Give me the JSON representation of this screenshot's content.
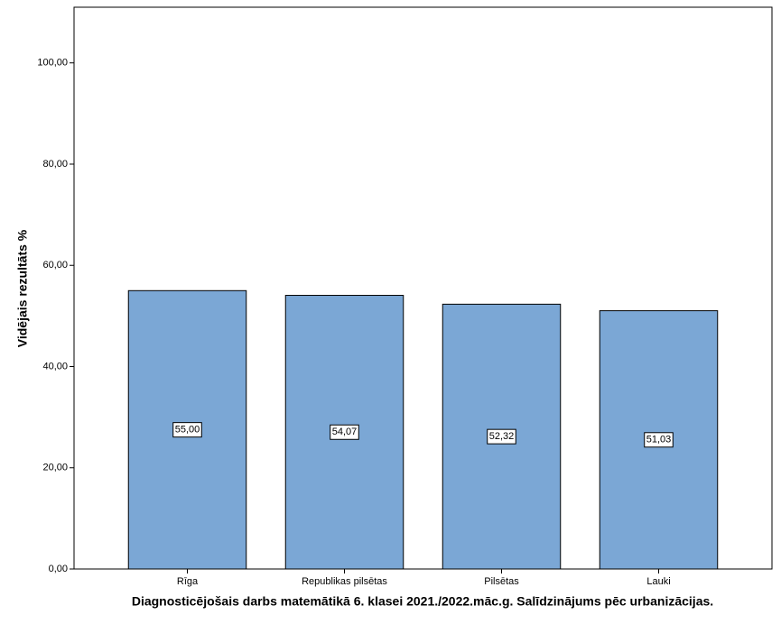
{
  "chart_data": {
    "type": "bar",
    "title": "Diagnosticējošais darbs matemātikā 6. klasei 2021./2022.māc.g. Salīdzinājums pēc urbanizācijas.",
    "y_label": "Vidējais rezultāts %",
    "categories": [
      "Rīga",
      "Republikas pilsētas",
      "Pilsētas",
      "Lauki"
    ],
    "values": [
      55.0,
      54.07,
      52.32,
      51.03
    ],
    "value_labels": [
      "55,00",
      "54,07",
      "52,32",
      "51,03"
    ],
    "color": "#7ba7d5",
    "ylim": [
      0,
      111
    ],
    "yticks": [
      {
        "value": 0,
        "label": "0,00"
      },
      {
        "value": 20,
        "label": "20,00"
      },
      {
        "value": 40,
        "label": "40,00"
      },
      {
        "value": 60,
        "label": "60,00"
      },
      {
        "value": 80,
        "label": "80,00"
      },
      {
        "value": 100,
        "label": "100,00"
      }
    ]
  }
}
